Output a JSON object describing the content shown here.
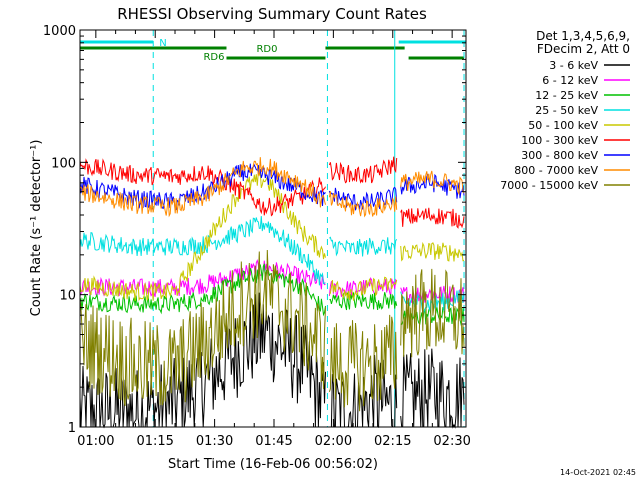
{
  "chart_data": {
    "type": "line",
    "title": "RHESSI Observing Summary Count Rates",
    "xlabel": "Start Time (16-Feb-06 00:56:02)",
    "ylabel": "Count Rate (s⁻¹ detector⁻¹)",
    "y_scale": "log",
    "ylim": [
      1,
      1000
    ],
    "xlim_minutes": [
      56.0,
      153.5
    ],
    "x_tick_labels": [
      "01:00",
      "01:15",
      "01:30",
      "01:45",
      "02:00",
      "02:15",
      "02:30"
    ],
    "x_tick_minutes": [
      60,
      75,
      90,
      105,
      120,
      135,
      150
    ],
    "y_tick_labels": [
      "1",
      "10",
      "100",
      "1000"
    ],
    "y_tick_values": [
      1,
      10,
      100,
      1000
    ],
    "legend_header": [
      "Det 1,3,4,5,6,9,",
      "FDecim 2, Att 0"
    ],
    "legend_placement": "right",
    "footer_date": "14-Oct-2021 02:45",
    "flags": [
      {
        "label": "N",
        "color": "#00e0e0",
        "spans": [
          [
            56.0,
            74.5
          ],
          [
            136.5,
            153.5
          ]
        ],
        "level": 1
      },
      {
        "label": "RD0",
        "color": "#008000",
        "spans": [
          [
            56.0,
            93.0
          ],
          [
            118.0,
            138.0
          ]
        ],
        "level": 2
      },
      {
        "label": "RD6",
        "color": "#008000",
        "spans": [
          [
            93.0,
            118.0
          ],
          [
            139.0,
            153.0
          ]
        ],
        "level": 3
      }
    ],
    "vlines": {
      "color": "#00e0e0",
      "solid": [
        56.0,
        135.5
      ],
      "dashed": [
        74.5,
        118.5,
        153.0
      ]
    },
    "series": [
      {
        "name": "3 - 6 keV",
        "color": "#000000",
        "values_by_segment": [
          [
            1.3,
            1.3,
            1.5,
            2.2,
            4.0,
            5.2,
            3.0,
            1.4
          ],
          [
            1.3,
            1.3,
            1.6,
            1.4
          ],
          [
            1.6,
            1.8,
            1.7
          ]
        ]
      },
      {
        "name": "6 - 12 keV",
        "color": "#ff00ff",
        "values_by_segment": [
          [
            11.5,
            11.3,
            11.3,
            12.0,
            14.5,
            16.0,
            13.5,
            12.0
          ],
          [
            11.0,
            11.0,
            11.5,
            11.3
          ],
          [
            10.0,
            10.2,
            10.0
          ]
        ]
      },
      {
        "name": "12 - 25 keV",
        "color": "#00c000",
        "values_by_segment": [
          [
            9.0,
            8.5,
            8.5,
            9.5,
            13.0,
            15.0,
            11.5,
            7.5
          ],
          [
            9.0,
            9.0,
            9.0,
            9.0
          ],
          [
            6.5,
            7.0,
            6.8
          ]
        ]
      },
      {
        "name": "25 - 50 keV",
        "color": "#00e0e0",
        "values_by_segment": [
          [
            26.0,
            23.0,
            23.0,
            24.0,
            30.0,
            35.0,
            20.0,
            12.0
          ],
          [
            24.0,
            22.0,
            23.5,
            23.0
          ],
          [
            9.0,
            8.5,
            9.5
          ]
        ]
      },
      {
        "name": "50 - 100 keV",
        "color": "#c8c800",
        "values_by_segment": [
          [
            12.0,
            10.5,
            10.5,
            25.0,
            65.0,
            75.0,
            30.0,
            20.0
          ],
          [
            11.5,
            10.5,
            11.5,
            12.0
          ],
          [
            21.0,
            21.5,
            20.5
          ]
        ]
      },
      {
        "name": "100 - 300 keV",
        "color": "#ff0000",
        "values_by_segment": [
          [
            95.0,
            80.0,
            78.0,
            85.0,
            60.0,
            45.0,
            55.0,
            70.0
          ],
          [
            88.0,
            80.0,
            80.0,
            100.0
          ],
          [
            38.0,
            40.0,
            37.0
          ]
        ]
      },
      {
        "name": "300 - 800 keV",
        "color": "#0000ff",
        "values_by_segment": [
          [
            68.0,
            53.0,
            50.0,
            60.0,
            85.0,
            80.0,
            62.0,
            52.0
          ],
          [
            58.0,
            50.0,
            50.0,
            56.0
          ],
          [
            65.0,
            70.0,
            60.0
          ]
        ]
      },
      {
        "name": "800 - 7000 keV",
        "color": "#ff8c00",
        "values_by_segment": [
          [
            60.0,
            48.0,
            46.0,
            55.0,
            90.0,
            95.0,
            70.0,
            48.0
          ],
          [
            52.0,
            45.0,
            45.0,
            50.0
          ],
          [
            70.0,
            75.0,
            66.0
          ]
        ]
      },
      {
        "name": "7000 - 15000 keV",
        "color": "#808000",
        "values_by_segment": [
          [
            4.5,
            2.9,
            2.8,
            4.5,
            9.0,
            10.5,
            6.0,
            4.0
          ],
          [
            3.0,
            2.9,
            3.0,
            3.5
          ],
          [
            7.0,
            7.5,
            6.5
          ]
        ]
      }
    ],
    "segment_minutes": [
      [
        56.0,
        70.0,
        80.0,
        88.0,
        97.0,
        103.0,
        112.0,
        118.0
      ],
      [
        119.0,
        125.0,
        130.0,
        136.0
      ],
      [
        137.0,
        145.0,
        153.0
      ]
    ]
  }
}
